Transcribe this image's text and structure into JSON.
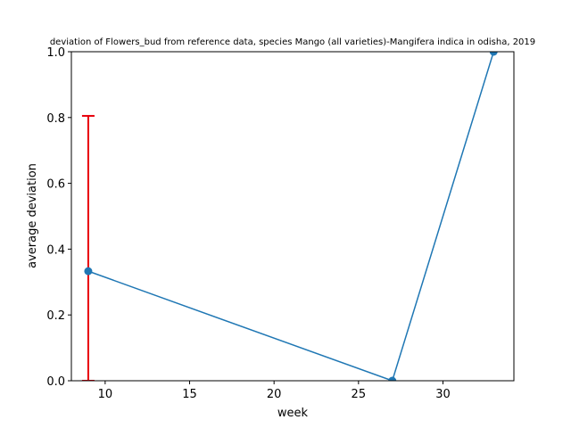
{
  "chart_data": {
    "type": "line",
    "title": "deviation of Flowers_bud from reference data, species Mango (all varieties)-Mangifera indica in odisha, 2019",
    "xlabel": "week",
    "ylabel": "average deviation",
    "xlim": [
      8,
      34.2
    ],
    "ylim": [
      0,
      1.0
    ],
    "x_ticks": [
      10,
      15,
      20,
      25,
      30
    ],
    "y_ticks": [
      0.0,
      0.2,
      0.4,
      0.6,
      0.8,
      1.0
    ],
    "x_tick_labels": [
      "10",
      "15",
      "20",
      "25",
      "30"
    ],
    "y_tick_labels": [
      "0.0",
      "0.2",
      "0.4",
      "0.6",
      "0.8",
      "1.0"
    ],
    "grid": false,
    "series": [
      {
        "x": [
          9,
          27,
          33
        ],
        "y": [
          0.333,
          0.0,
          1.0
        ],
        "color": "#1f77b4",
        "marker": "circle"
      }
    ],
    "error_bars": [
      {
        "x": 9,
        "low": 0.0,
        "high": 0.805,
        "color": "#e8000b"
      }
    ]
  }
}
